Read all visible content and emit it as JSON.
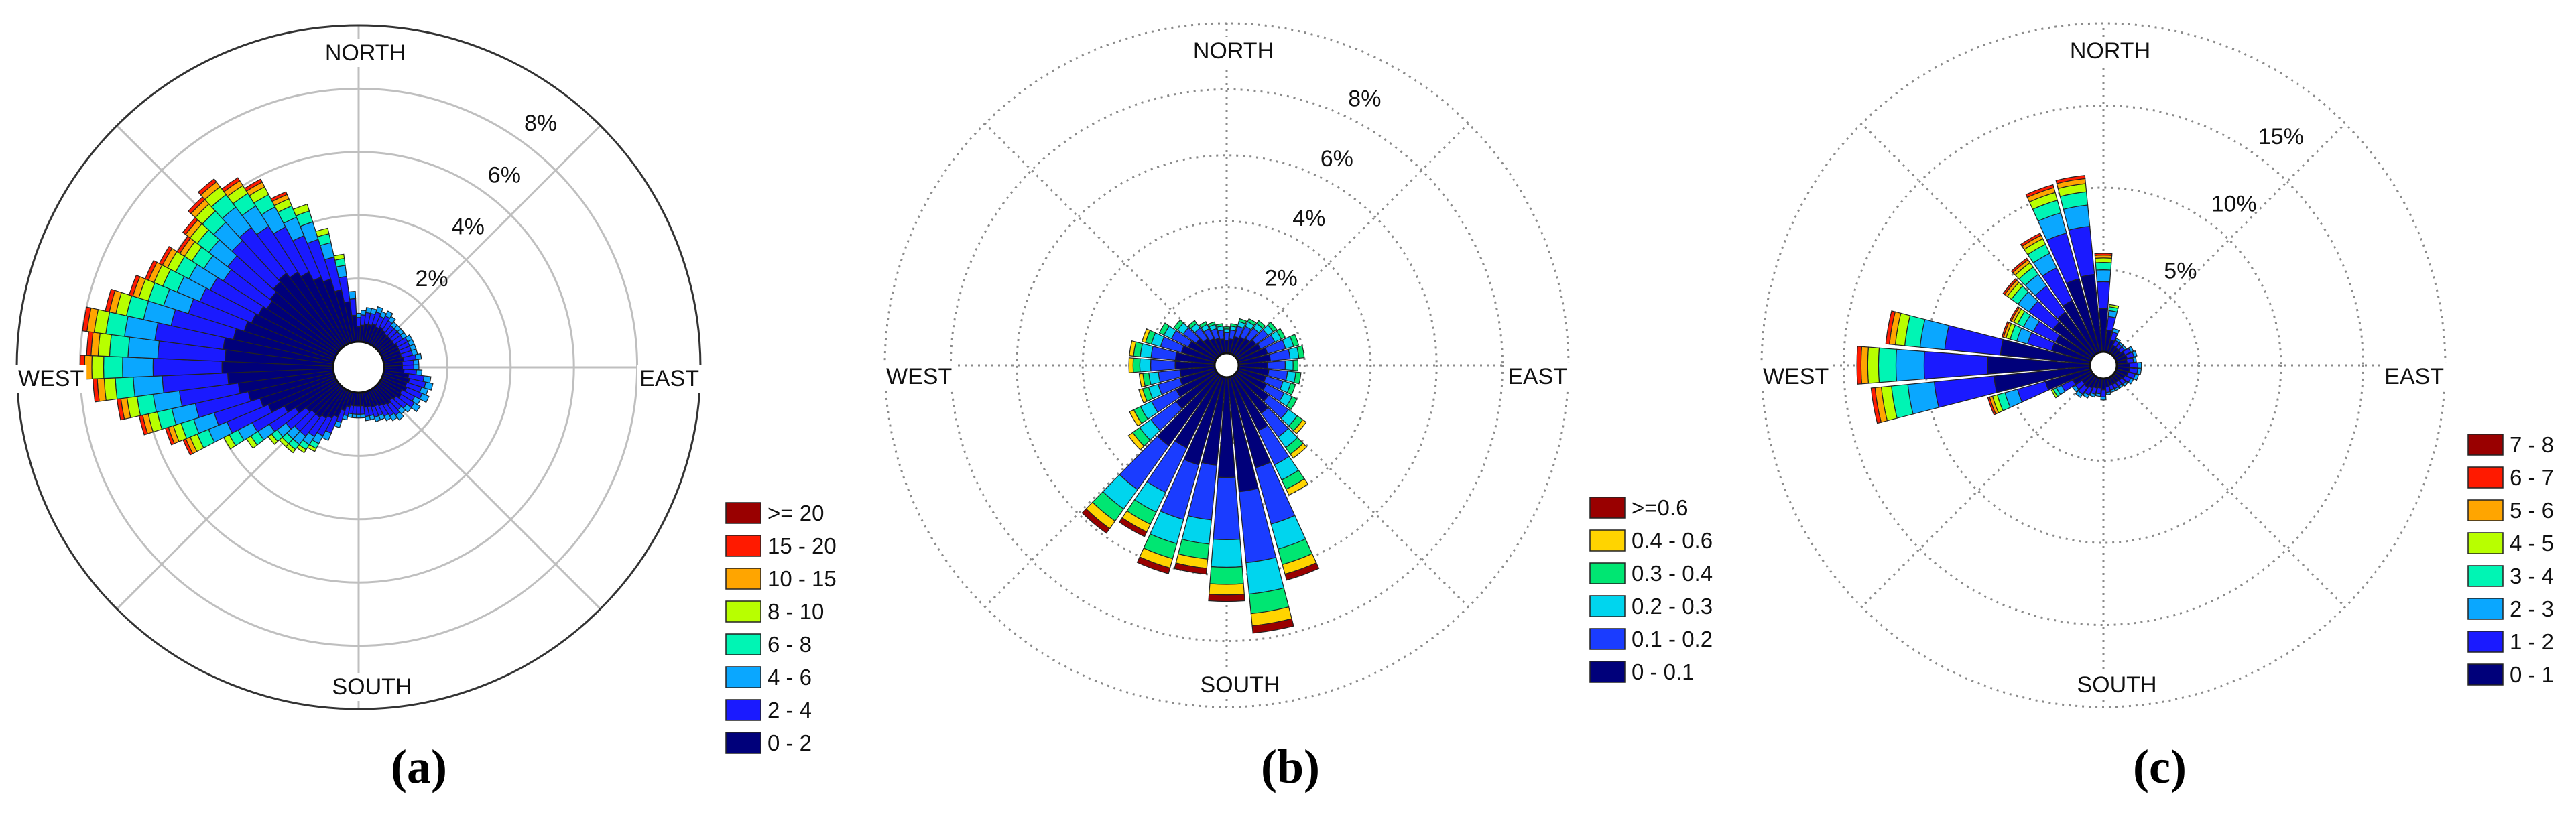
{
  "chart_data": [
    {
      "type": "polar-bar",
      "panel_label": "(a)",
      "direction_labels": {
        "north": "NORTH",
        "east": "EAST",
        "south": "SOUTH",
        "west": "WEST"
      },
      "radial_ticks": [
        2,
        4,
        6,
        8
      ],
      "radial_tick_labels": [
        "2%",
        "4%",
        "6%",
        "8%"
      ],
      "radial_max": 10,
      "grid": "solid",
      "outer_circle": "solid",
      "spoke_angles_deg": [
        0,
        45,
        90,
        135,
        180,
        225,
        270,
        315
      ],
      "sectors": 72,
      "legend": {
        "placement": "right-bottom",
        "entries": [
          {
            "label": ">= 20",
            "color": "#990000"
          },
          {
            "label": "15 - 20",
            "color": "#ff1a00"
          },
          {
            "label": "10 - 15",
            "color": "#ffa500"
          },
          {
            "label": "8 - 10",
            "color": "#b8ff00"
          },
          {
            "label": "6 - 8",
            "color": "#00f5b4"
          },
          {
            "label": "4 - 6",
            "color": "#0aa7ff"
          },
          {
            "label": "2 - 4",
            "color": "#1a1aff"
          },
          {
            "label": "0 - 2",
            "color": "#00007a"
          }
        ]
      },
      "bars": [
        {
          "dir": 0,
          "total": 0.9
        },
        {
          "dir": 5,
          "total": 1.0
        },
        {
          "dir": 10,
          "total": 1.1
        },
        {
          "dir": 15,
          "total": 1.1
        },
        {
          "dir": 20,
          "total": 1.2
        },
        {
          "dir": 25,
          "total": 1.1
        },
        {
          "dir": 30,
          "total": 1.2
        },
        {
          "dir": 35,
          "total": 1.1
        },
        {
          "dir": 40,
          "total": 1.0
        },
        {
          "dir": 45,
          "total": 1.0
        },
        {
          "dir": 50,
          "total": 1.0
        },
        {
          "dir": 55,
          "total": 1.0
        },
        {
          "dir": 60,
          "total": 1.1
        },
        {
          "dir": 65,
          "total": 1.1
        },
        {
          "dir": 70,
          "total": 1.1
        },
        {
          "dir": 75,
          "total": 1.1
        },
        {
          "dir": 80,
          "total": 1.2
        },
        {
          "dir": 85,
          "total": 1.1
        },
        {
          "dir": 90,
          "total": 1.1
        },
        {
          "dir": 95,
          "total": 1.2
        },
        {
          "dir": 100,
          "total": 1.5
        },
        {
          "dir": 105,
          "total": 1.6
        },
        {
          "dir": 110,
          "total": 1.5
        },
        {
          "dir": 115,
          "total": 1.6
        },
        {
          "dir": 120,
          "total": 1.4
        },
        {
          "dir": 125,
          "total": 1.5
        },
        {
          "dir": 130,
          "total": 1.3
        },
        {
          "dir": 135,
          "total": 1.2
        },
        {
          "dir": 140,
          "total": 1.3
        },
        {
          "dir": 145,
          "total": 1.2
        },
        {
          "dir": 150,
          "total": 1.1
        },
        {
          "dir": 155,
          "total": 1.0
        },
        {
          "dir": 160,
          "total": 1.0
        },
        {
          "dir": 165,
          "total": 0.9
        },
        {
          "dir": 170,
          "total": 0.9
        },
        {
          "dir": 175,
          "total": 0.8
        },
        {
          "dir": 180,
          "total": 0.8
        },
        {
          "dir": 185,
          "total": 0.8
        },
        {
          "dir": 190,
          "total": 0.8
        },
        {
          "dir": 195,
          "total": 0.9
        },
        {
          "dir": 200,
          "total": 1.2
        },
        {
          "dir": 205,
          "total": 1.7
        },
        {
          "dir": 210,
          "total": 2.2
        },
        {
          "dir": 215,
          "total": 2.4
        },
        {
          "dir": 220,
          "total": 2.6
        },
        {
          "dir": 225,
          "total": 2.6
        },
        {
          "dir": 230,
          "total": 2.8
        },
        {
          "dir": 235,
          "total": 3.4
        },
        {
          "dir": 240,
          "total": 4.0
        },
        {
          "dir": 245,
          "total": 5.2
        },
        {
          "dir": 250,
          "total": 5.6
        },
        {
          "dir": 255,
          "total": 6.3
        },
        {
          "dir": 260,
          "total": 6.9
        },
        {
          "dir": 265,
          "total": 7.6
        },
        {
          "dir": 270,
          "total": 8.0
        },
        {
          "dir": 275,
          "total": 7.8
        },
        {
          "dir": 280,
          "total": 8.0
        },
        {
          "dir": 285,
          "total": 7.4
        },
        {
          "dir": 290,
          "total": 6.8
        },
        {
          "dir": 295,
          "total": 6.5
        },
        {
          "dir": 300,
          "total": 6.3
        },
        {
          "dir": 305,
          "total": 6.0
        },
        {
          "dir": 310,
          "total": 6.2
        },
        {
          "dir": 315,
          "total": 6.5
        },
        {
          "dir": 320,
          "total": 6.7
        },
        {
          "dir": 325,
          "total": 6.3
        },
        {
          "dir": 330,
          "total": 5.9
        },
        {
          "dir": 335,
          "total": 5.2
        },
        {
          "dir": 340,
          "total": 4.6
        },
        {
          "dir": 345,
          "total": 3.7
        },
        {
          "dir": 350,
          "total": 2.8
        },
        {
          "dir": 355,
          "total": 1.6
        }
      ]
    },
    {
      "type": "polar-bar",
      "panel_label": "(b)",
      "direction_labels": {
        "north": "NORTH",
        "east": "EAST",
        "south": "SOUTH",
        "west": "WEST"
      },
      "radial_ticks": [
        2,
        4,
        6,
        8
      ],
      "radial_tick_labels": [
        "2%",
        "4%",
        "6%",
        "8%"
      ],
      "radial_max": 10,
      "grid": "dotted",
      "outer_circle": "dotted",
      "spoke_angles_deg": [
        0,
        45,
        90,
        135,
        180,
        225,
        270,
        315
      ],
      "sectors": 36,
      "legend": {
        "placement": "right-bottom",
        "entries": [
          {
            "label": ">=0.6",
            "color": "#990000"
          },
          {
            "label": "0.4 - 0.6",
            "color": "#ffd400"
          },
          {
            "label": "0.3 - 0.4",
            "color": "#00e672"
          },
          {
            "label": "0.2 - 0.3",
            "color": "#00d5ee"
          },
          {
            "label": "0.1 - 0.2",
            "color": "#1a3cff"
          },
          {
            "label": "0 - 0.1",
            "color": "#00007a"
          }
        ]
      },
      "bars": [
        {
          "dir": 0,
          "total": 0.8
        },
        {
          "dir": 10,
          "total": 0.9
        },
        {
          "dir": 20,
          "total": 1.1
        },
        {
          "dir": 30,
          "total": 1.2
        },
        {
          "dir": 40,
          "total": 1.3
        },
        {
          "dir": 50,
          "total": 1.5
        },
        {
          "dir": 60,
          "total": 1.6
        },
        {
          "dir": 70,
          "total": 1.9
        },
        {
          "dir": 80,
          "total": 2.0
        },
        {
          "dir": 90,
          "total": 1.8
        },
        {
          "dir": 100,
          "total": 1.9
        },
        {
          "dir": 110,
          "total": 1.8
        },
        {
          "dir": 120,
          "total": 2.0
        },
        {
          "dir": 130,
          "total": 2.6
        },
        {
          "dir": 140,
          "total": 3.1
        },
        {
          "dir": 150,
          "total": 4.0
        },
        {
          "dir": 160,
          "total": 6.4
        },
        {
          "dir": 170,
          "total": 7.8
        },
        {
          "dir": 180,
          "total": 6.8
        },
        {
          "dir": 190,
          "total": 6.0
        },
        {
          "dir": 200,
          "total": 6.2
        },
        {
          "dir": 210,
          "total": 5.4
        },
        {
          "dir": 220,
          "total": 5.9
        },
        {
          "dir": 230,
          "total": 3.3
        },
        {
          "dir": 240,
          "total": 2.9
        },
        {
          "dir": 250,
          "total": 2.4
        },
        {
          "dir": 260,
          "total": 2.3
        },
        {
          "dir": 270,
          "total": 2.6
        },
        {
          "dir": 280,
          "total": 2.6
        },
        {
          "dir": 290,
          "total": 2.3
        },
        {
          "dir": 300,
          "total": 1.9
        },
        {
          "dir": 310,
          "total": 1.6
        },
        {
          "dir": 320,
          "total": 1.3
        },
        {
          "dir": 330,
          "total": 1.1
        },
        {
          "dir": 340,
          "total": 1.0
        },
        {
          "dir": 350,
          "total": 0.9
        }
      ]
    },
    {
      "type": "polar-bar",
      "panel_label": "(c)",
      "direction_labels": {
        "north": "NORTH",
        "east": "EAST",
        "south": "SOUTH",
        "west": "WEST"
      },
      "radial_ticks": [
        5,
        10,
        15
      ],
      "radial_tick_labels": [
        "5%",
        "10%",
        "15%"
      ],
      "radial_max": 20,
      "grid": "dotted",
      "outer_circle": "dotted",
      "spoke_angles_deg": [
        0,
        45,
        90,
        135,
        180,
        225,
        270,
        315
      ],
      "sectors": 36,
      "legend": {
        "placement": "right-bottom",
        "entries": [
          {
            "label": "7 - 8",
            "color": "#990000"
          },
          {
            "label": "6 - 7",
            "color": "#ff1a00"
          },
          {
            "label": "5 - 6",
            "color": "#ffa500"
          },
          {
            "label": "4 - 5",
            "color": "#b8ff00"
          },
          {
            "label": "3 - 4",
            "color": "#00f5b4"
          },
          {
            "label": "2 - 3",
            "color": "#0aa7ff"
          },
          {
            "label": "1 - 2",
            "color": "#1a1aff"
          },
          {
            "label": "0 - 1",
            "color": "#00007a"
          }
        ]
      },
      "bars": [
        {
          "dir": 0,
          "total": 6.0
        },
        {
          "dir": 10,
          "total": 2.9
        },
        {
          "dir": 20,
          "total": 1.5
        },
        {
          "dir": 30,
          "total": 1.0
        },
        {
          "dir": 40,
          "total": 0.9
        },
        {
          "dir": 50,
          "total": 0.9
        },
        {
          "dir": 60,
          "total": 1.2
        },
        {
          "dir": 70,
          "total": 1.3
        },
        {
          "dir": 80,
          "total": 1.2
        },
        {
          "dir": 90,
          "total": 1.5
        },
        {
          "dir": 100,
          "total": 1.5
        },
        {
          "dir": 110,
          "total": 1.4
        },
        {
          "dir": 120,
          "total": 1.2
        },
        {
          "dir": 130,
          "total": 1.0
        },
        {
          "dir": 140,
          "total": 0.9
        },
        {
          "dir": 150,
          "total": 0.9
        },
        {
          "dir": 160,
          "total": 0.9
        },
        {
          "dir": 170,
          "total": 1.0
        },
        {
          "dir": 180,
          "total": 1.3
        },
        {
          "dir": 190,
          "total": 1.1
        },
        {
          "dir": 200,
          "total": 1.2
        },
        {
          "dir": 210,
          "total": 1.4
        },
        {
          "dir": 220,
          "total": 1.6
        },
        {
          "dir": 230,
          "total": 1.5
        },
        {
          "dir": 240,
          "total": 2.7
        },
        {
          "dir": 250,
          "total": 6.5
        },
        {
          "dir": 260,
          "total": 13.4
        },
        {
          "dir": 270,
          "total": 14.2
        },
        {
          "dir": 280,
          "total": 12.5
        },
        {
          "dir": 290,
          "total": 5.6
        },
        {
          "dir": 300,
          "total": 5.5
        },
        {
          "dir": 310,
          "total": 6.7
        },
        {
          "dir": 320,
          "total": 7.2
        },
        {
          "dir": 330,
          "total": 8.1
        },
        {
          "dir": 340,
          "total": 10.6
        },
        {
          "dir": 350,
          "total": 10.8
        }
      ]
    }
  ]
}
